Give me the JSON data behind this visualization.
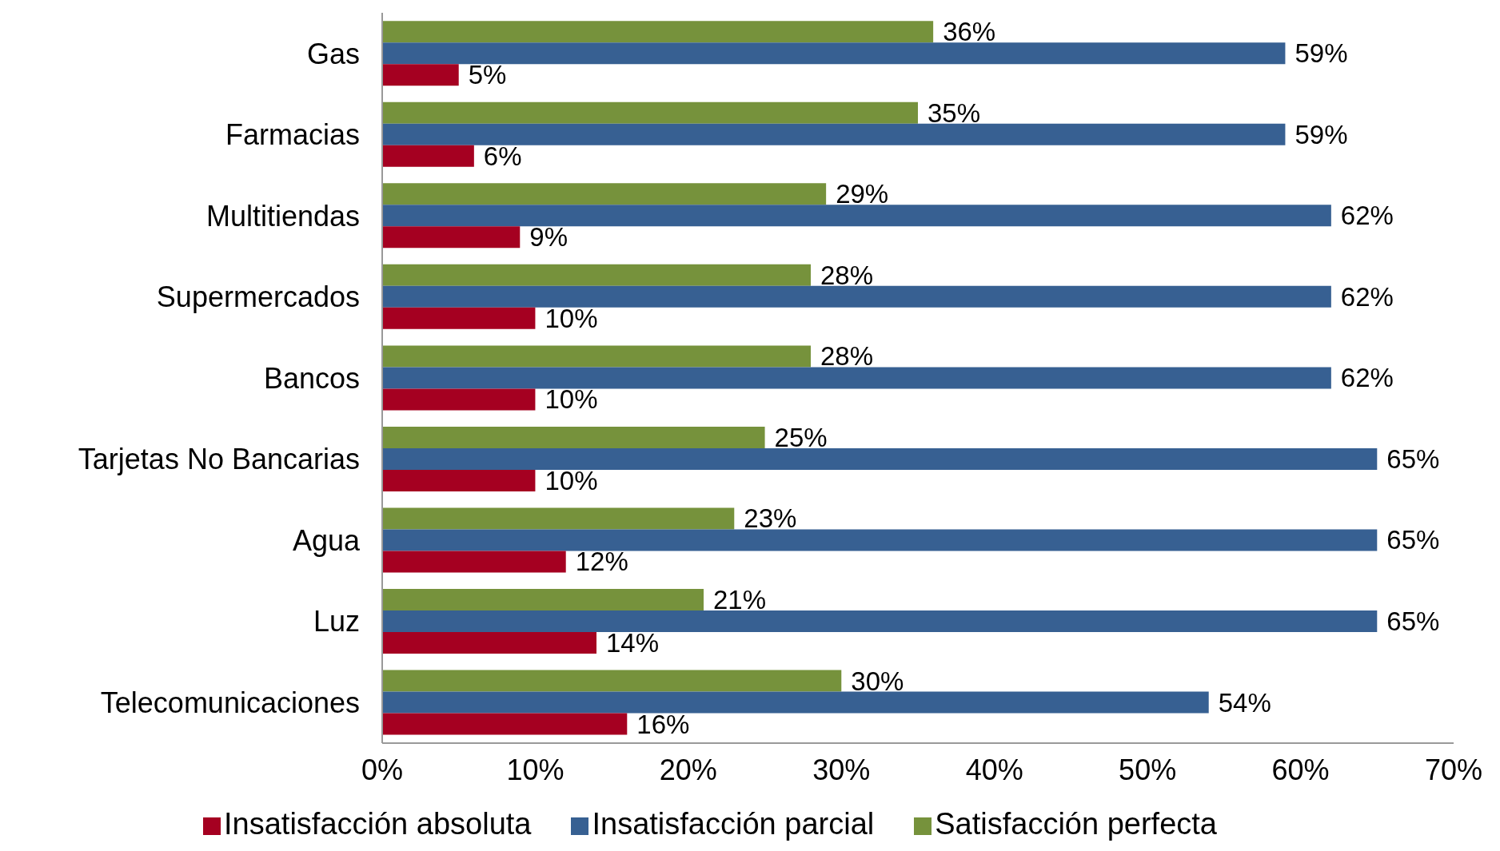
{
  "chart_data": {
    "type": "bar",
    "orientation": "horizontal",
    "categories": [
      "Gas",
      "Farmacias",
      "Multitiendas",
      "Supermercados",
      "Bancos",
      "Tarjetas No Bancarias",
      "Agua",
      "Luz",
      "Telecomunicaciones"
    ],
    "series": [
      {
        "name": "Satisfacción perfecta",
        "color": "#76923c",
        "values": [
          36,
          35,
          29,
          28,
          28,
          25,
          23,
          21,
          30
        ],
        "value_labels": [
          "36%",
          "35%",
          "29%",
          "28%",
          "28%",
          "25%",
          "23%",
          "21%",
          "30%"
        ]
      },
      {
        "name": "Insatisfacción parcial",
        "color": "#376092",
        "values": [
          59,
          59,
          62,
          62,
          62,
          65,
          65,
          65,
          54
        ],
        "value_labels": [
          "59%",
          "59%",
          "62%",
          "62%",
          "62%",
          "65%",
          "65%",
          "65%",
          "54%"
        ]
      },
      {
        "name": "Insatisfacción absoluta",
        "color": "#a50021",
        "values": [
          5,
          6,
          9,
          10,
          10,
          10,
          12,
          14,
          16
        ],
        "value_labels": [
          "5%",
          "6%",
          "9%",
          "10%",
          "10%",
          "10%",
          "12%",
          "14%",
          "16%"
        ]
      }
    ],
    "xlim": [
      0,
      70
    ],
    "xticks": [
      {
        "value": 0,
        "label": "0%"
      },
      {
        "value": 10,
        "label": "10%"
      },
      {
        "value": 20,
        "label": "20%"
      },
      {
        "value": 30,
        "label": "30%"
      },
      {
        "value": 40,
        "label": "40%"
      },
      {
        "value": 50,
        "label": "50%"
      },
      {
        "value": 60,
        "label": "60%"
      },
      {
        "value": 70,
        "label": "70%"
      }
    ],
    "grid": false,
    "legend": "bottom"
  }
}
